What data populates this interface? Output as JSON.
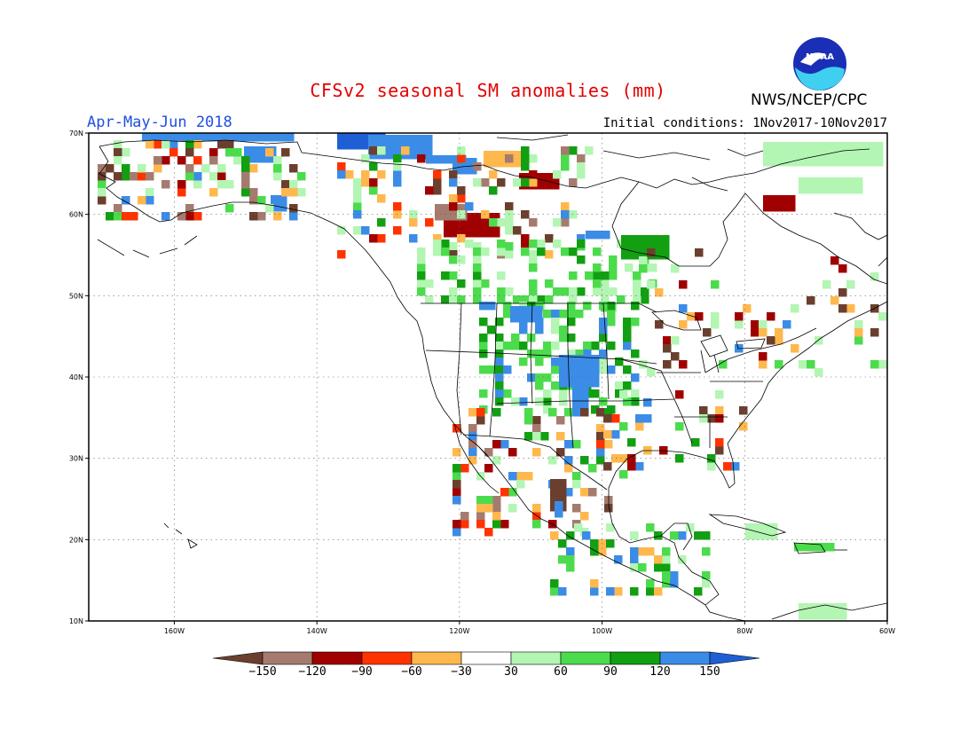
{
  "header": {
    "title": "CFSv2 seasonal SM anomalies (mm)",
    "season": "Apr-May-Jun 2018",
    "initial_conditions": "Initial conditions: 1Nov2017-10Nov2017",
    "agency": "NWS/NCEP/CPC",
    "logo_text": "NOAA"
  },
  "map": {
    "lon_range": [
      -172,
      -60
    ],
    "lat_range": [
      10,
      70
    ],
    "lat_ticks": [
      "10N",
      "20N",
      "30N",
      "40N",
      "50N",
      "60N",
      "70N"
    ],
    "lon_ticks": [
      "160W",
      "140W",
      "120W",
      "100W",
      "80W",
      "60W"
    ],
    "grid": "dotted"
  },
  "colorbar": {
    "labels": [
      "-150",
      "-120",
      "-90",
      "-60",
      "-30",
      "30",
      "60",
      "90",
      "120",
      "150"
    ],
    "colors": [
      "#6b3f2e",
      "#a57b6f",
      "#a00000",
      "#ff3300",
      "#ffb84d",
      "#ffffff",
      "#b3f5b3",
      "#4cdb4c",
      "#129f12",
      "#3b8ce6",
      "#1f5fd6"
    ]
  },
  "colors": {
    "brown": "#6b3f2e",
    "lightbrown": "#a57b6f",
    "darkred": "#a00000",
    "red": "#ff3300",
    "orange": "#ffb84d",
    "lightgreen": "#b3f5b3",
    "green": "#4cdb4c",
    "darkgreen": "#129f12",
    "blue": "#3b8ce6",
    "darkblue": "#1f5fd6"
  }
}
